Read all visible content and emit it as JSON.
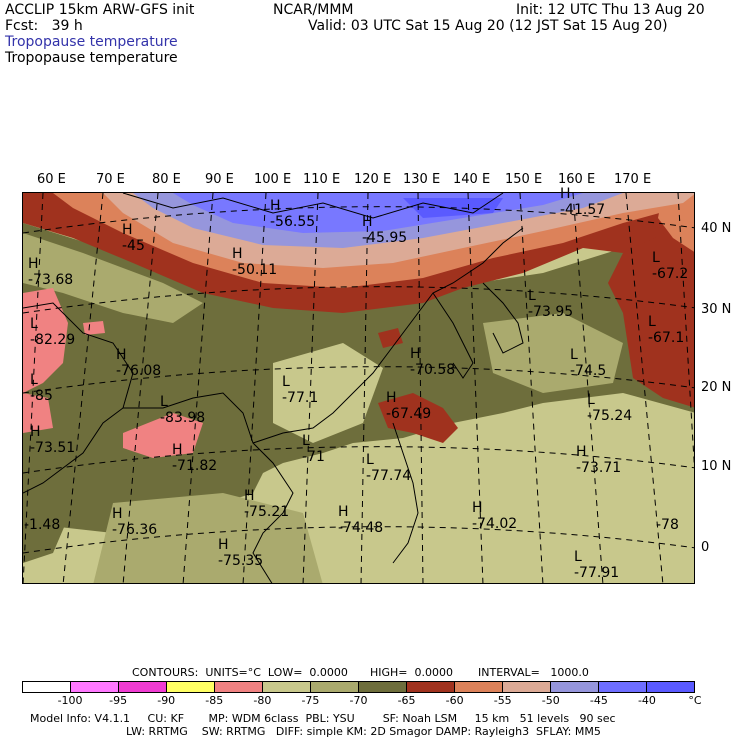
{
  "header": {
    "model": "ACCLIP 15km ARW-GFS init",
    "org": "NCAR/MMM",
    "init": "Init: 12 UTC Thu 13 Aug 20",
    "fcst": "Fcst:   39 h",
    "valid": "Valid: 03 UTC Sat 15 Aug 20 (12 JST Sat 15 Aug 20)",
    "title_blue": "Tropopause temperature",
    "title_black": "Tropopause temperature"
  },
  "lon_labels": [
    "60 E",
    "70 E",
    "80 E",
    "90 E",
    "100 E",
    "110 E",
    "120 E",
    "130 E",
    "140 E",
    "150 E",
    "160 E",
    "170 E"
  ],
  "lat_labels": [
    "40 N",
    "30 N",
    "20 N",
    "10 N",
    "0"
  ],
  "map_labels": [
    {
      "hl": "H",
      "val": "-45"
    },
    {
      "hl": "H",
      "val": "-56.55"
    },
    {
      "hl": "H",
      "val": "-45.95"
    },
    {
      "hl": "H",
      "val": "-41.57"
    },
    {
      "hl": "H",
      "val": "-50.11"
    },
    {
      "hl": "H",
      "val": "-73.68"
    },
    {
      "hl": "L",
      "val": "-82.29"
    },
    {
      "hl": "H",
      "val": "-76.08"
    },
    {
      "hl": "L",
      "val": "-85"
    },
    {
      "hl": "L",
      "val": "-83.98"
    },
    {
      "hl": "H",
      "val": "-73.51"
    },
    {
      "hl": "L",
      "val": "-77.1"
    },
    {
      "hl": "H",
      "val": "-70.58"
    },
    {
      "hl": "H",
      "val": "-67.49"
    },
    {
      "hl": "L",
      "val": "-73.95"
    },
    {
      "hl": "L",
      "val": "-74.5"
    },
    {
      "hl": "L",
      "val": "-75.24"
    },
    {
      "hl": "H",
      "val": "-73.71"
    },
    {
      "hl": "L",
      "val": "-67.2"
    },
    {
      "hl": "L",
      "val": "-67.1"
    },
    {
      "hl": "H",
      "val": "-71.82"
    },
    {
      "hl": "L",
      "val": "-71"
    },
    {
      "hl": "L",
      "val": "-77.74"
    },
    {
      "hl": "H",
      "val": "-76.36"
    },
    {
      "hl": "H",
      "val": "-75.21"
    },
    {
      "hl": "H",
      "val": "-74.48"
    },
    {
      "hl": "H",
      "val": "-74.02"
    },
    {
      "hl": "H",
      "val": "-75.35"
    },
    {
      "hl": "L",
      "val": "-77.91"
    },
    {
      "hl": "",
      "val": "-1.48"
    },
    {
      "hl": "",
      "val": "-78"
    }
  ],
  "contour_info": {
    "contours": "CONTOURS:  UNITS=°C  LOW=  0.0000",
    "high": "HIGH=  0.0000",
    "interval": "INTERVAL=   1000.0"
  },
  "legend": {
    "colors": [
      "#ffffff",
      "#ff78ff",
      "#f03cd2",
      "#ffff64",
      "#f08282",
      "#c8c88c",
      "#aaaa6e",
      "#6e6e3c",
      "#a0321e",
      "#dc825a",
      "#dcaa96",
      "#9696dc",
      "#6e6eff",
      "#5a5aff",
      "#7878ff"
    ],
    "ticks": [
      "-100",
      "-95",
      "-90",
      "-85",
      "-80",
      "-75",
      "-70",
      "-65",
      "-60",
      "-55",
      "-50",
      "-45",
      "-40",
      "°C"
    ]
  },
  "footer": {
    "line1": "Model Info: V4.1.1     CU: KF       MP: WDM 6class  PBL: YSU        SF: Noah LSM     15 km   51 levels   90 sec",
    "line2": "LW: RRTMG    SW: RRTMG   DIFF: simple KM: 2D Smagor DAMP: Rayleigh3  SFLAY: MM5"
  }
}
